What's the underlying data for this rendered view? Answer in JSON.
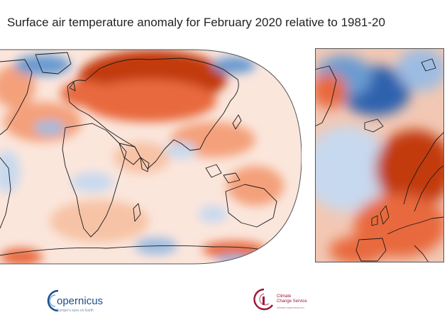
{
  "header": {
    "title": "Surface air temperature anomaly for February 2020 relative to 1981-20"
  },
  "maps": {
    "world": {
      "region": "world"
    },
    "europe": {
      "region": "europe"
    }
  },
  "colors": {
    "warm_strong": "#c23a0c",
    "warm": "#e8693c",
    "warm_light": "#f7c3a6",
    "neutral": "#fbe6dc",
    "cool_light": "#c7d9ef",
    "cool": "#6b9bd1",
    "cool_strong": "#2f62ad",
    "coastline": "#1a1a1a",
    "copernicus_blue": "#1b4f8a",
    "c3s_red": "#9a1a3a"
  },
  "footer": {
    "copernicus": {
      "name": "opernicus",
      "tagline": "Europe's eyes on Earth"
    },
    "c3s": {
      "line1": "Climate",
      "line2": "Change Service",
      "line3": "climate.copernicus.eu"
    }
  }
}
